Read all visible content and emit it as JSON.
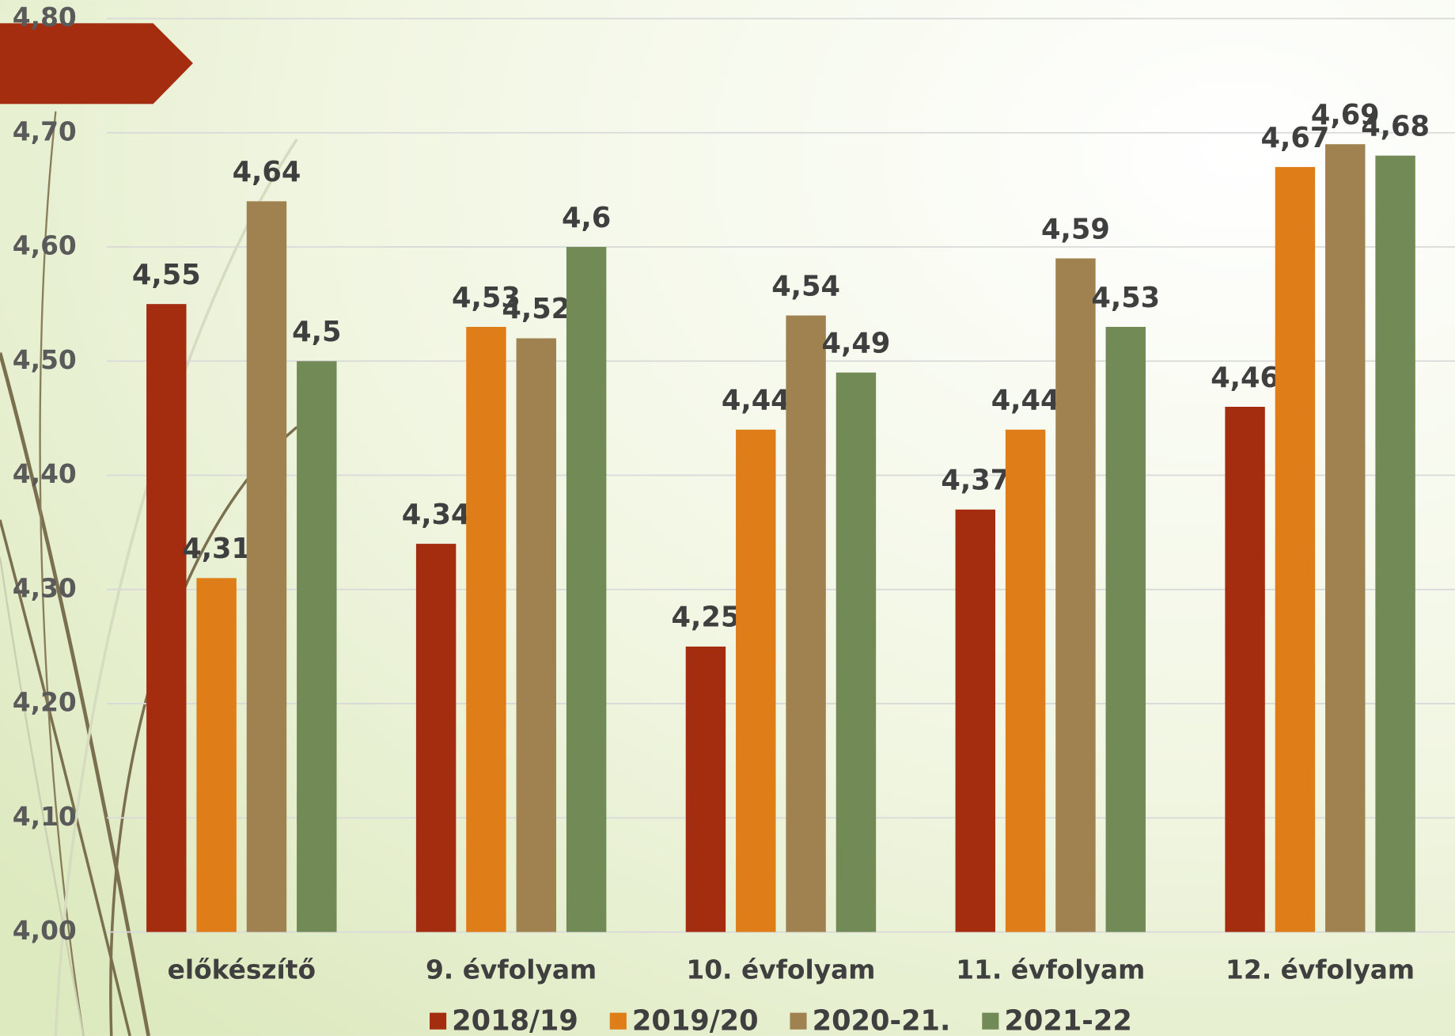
{
  "chart_data": {
    "type": "bar",
    "categories": [
      "előkészítő",
      "9. évfolyam",
      "10. évfolyam",
      "11. évfolyam",
      "12. évfolyam"
    ],
    "series": [
      {
        "name": "2018/19",
        "color": "#a52d0f",
        "values": [
          4.55,
          4.34,
          4.25,
          4.37,
          4.46
        ],
        "value_labels": [
          "4,55",
          "4,34",
          "4,25",
          "4,37",
          "4,46"
        ]
      },
      {
        "name": "2019/20",
        "color": "#df7d19",
        "values": [
          4.31,
          4.53,
          4.44,
          4.44,
          4.67
        ],
        "value_labels": [
          "4,31",
          "4,53",
          "4,44",
          "4,44",
          "4,67"
        ]
      },
      {
        "name": "2020-21.",
        "color": "#a08250",
        "values": [
          4.64,
          4.52,
          4.54,
          4.59,
          4.69
        ],
        "value_labels": [
          "4,64",
          "4,52",
          "4,54",
          "4,59",
          "4,69"
        ]
      },
      {
        "name": "2021-22",
        "color": "#728a55",
        "values": [
          4.5,
          4.6,
          4.49,
          4.53,
          4.68
        ],
        "value_labels": [
          "4,5",
          "4,6",
          "4,49",
          "4,53",
          "4,68"
        ]
      }
    ],
    "ylim": [
      4.0,
      4.8
    ],
    "yticks": [
      {
        "value": 4.0,
        "label": "4,00"
      },
      {
        "value": 4.1,
        "label": "4,10"
      },
      {
        "value": 4.2,
        "label": "4,20"
      },
      {
        "value": 4.3,
        "label": "4,30"
      },
      {
        "value": 4.4,
        "label": "4,40"
      },
      {
        "value": 4.5,
        "label": "4,50"
      },
      {
        "value": 4.6,
        "label": "4,60"
      },
      {
        "value": 4.7,
        "label": "4,70"
      },
      {
        "value": 4.8,
        "label": "4,80"
      }
    ],
    "grid": true,
    "legend": "bottom"
  }
}
